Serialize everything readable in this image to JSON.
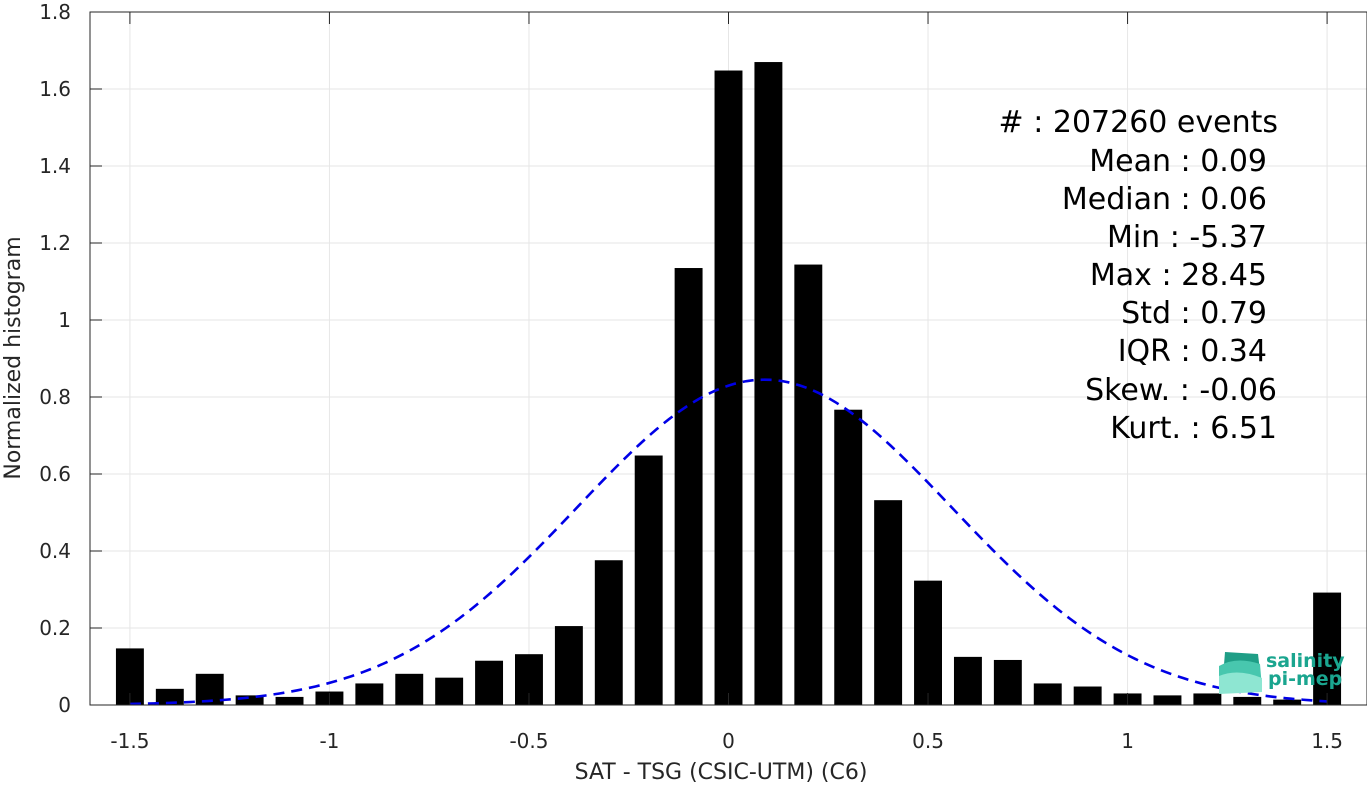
{
  "chart_data": {
    "type": "bar",
    "xlabel": "SAT - TSG (CSIC-UTM) (C6)",
    "ylabel": "Normalized histogram",
    "xlim": [
      -1.6,
      1.6
    ],
    "ylim": [
      0,
      1.8
    ],
    "xticks": [
      -1.5,
      -1,
      -0.5,
      0,
      0.5,
      1,
      1.5
    ],
    "xtick_labels": [
      "-1.5",
      "-1",
      "-0.5",
      "0",
      "0.5",
      "1",
      "1.5"
    ],
    "yticks": [
      0,
      0.2,
      0.4,
      0.6,
      0.8,
      1,
      1.2,
      1.4,
      1.6,
      1.8
    ],
    "ytick_labels": [
      "0",
      "0.2",
      "0.4",
      "0.6",
      "0.8",
      "1",
      "1.2",
      "1.4",
      "1.6",
      "1.8"
    ],
    "grid": true,
    "bar_width": 0.07,
    "bar_color": "#000000",
    "x": [
      -1.5,
      -1.4,
      -1.3,
      -1.2,
      -1.1,
      -1.0,
      -0.9,
      -0.8,
      -0.7,
      -0.6,
      -0.5,
      -0.4,
      -0.3,
      -0.2,
      -0.1,
      0.0,
      0.1,
      0.2,
      0.3,
      0.4,
      0.5,
      0.6,
      0.7,
      0.8,
      0.9,
      1.0,
      1.1,
      1.2,
      1.3,
      1.4,
      1.5
    ],
    "values": [
      0.147,
      0.042,
      0.081,
      0.025,
      0.021,
      0.035,
      0.056,
      0.081,
      0.071,
      0.115,
      0.132,
      0.205,
      0.376,
      0.648,
      1.135,
      1.648,
      1.67,
      1.144,
      0.767,
      0.532,
      0.323,
      0.125,
      0.117,
      0.056,
      0.048,
      0.03,
      0.025,
      0.03,
      0.021,
      0.014,
      0.292
    ],
    "fit_curve": {
      "type": "gaussian",
      "mean": 0.09,
      "std": 0.47,
      "color": "#0000e6",
      "style": "dashed",
      "x_range": [
        -1.5,
        1.5
      ]
    },
    "stats": [
      "#  : 207260 events",
      "Mean : 0.09",
      "Median : 0.06",
      "Min : -5.37",
      "Max : 28.45",
      "Std : 0.79",
      "IQR : 0.34",
      "Skew. : -0.06",
      "Kurt. : 6.51"
    ]
  },
  "logo": {
    "line1": "salinity",
    "line2": "pi-mep",
    "color": "#1aa58f"
  }
}
